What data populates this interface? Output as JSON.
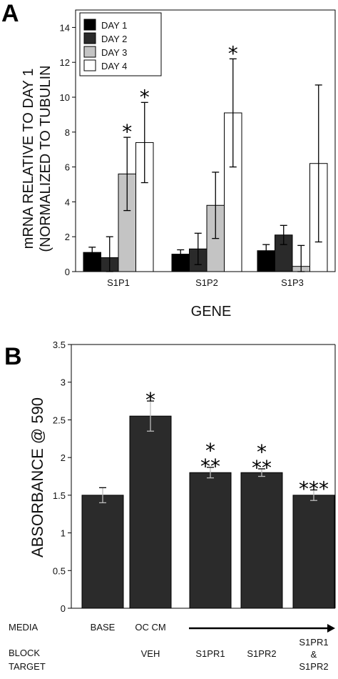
{
  "chart_data": [
    {
      "panel": "A",
      "type": "bar",
      "ylabel_line1": "mRNA RELATIVE TO DAY 1",
      "ylabel_line2": "(NORMALIZED TO TUBULIN",
      "xlabel": "GENE",
      "ylim": [
        0,
        15
      ],
      "yticks": [
        0,
        2,
        4,
        6,
        8,
        10,
        12,
        14
      ],
      "categories": [
        "S1P1",
        "S1P2",
        "S1P3"
      ],
      "legend_position": "top-left",
      "series": [
        {
          "name": "DAY 1",
          "color": "#000000",
          "values": [
            1.1,
            1.0,
            1.2
          ],
          "errors": [
            0.3,
            0.25,
            0.35
          ]
        },
        {
          "name": "DAY 2",
          "color": "#2a2a2a",
          "values": [
            0.8,
            1.3,
            2.1
          ],
          "errors": [
            1.2,
            0.9,
            0.55
          ]
        },
        {
          "name": "DAY 3",
          "color": "#c4c4c4",
          "values": [
            5.6,
            3.8,
            0.3
          ],
          "errors": [
            2.1,
            1.9,
            1.2
          ]
        },
        {
          "name": "DAY 4",
          "color": "#ffffff",
          "values": [
            7.4,
            9.1,
            6.2
          ],
          "errors": [
            2.3,
            3.1,
            4.5
          ]
        }
      ],
      "annotations": [
        {
          "category": "S1P1",
          "series": "DAY 3",
          "text": "*"
        },
        {
          "category": "S1P1",
          "series": "DAY 4",
          "text": "*"
        },
        {
          "category": "S1P2",
          "series": "DAY 4",
          "text": "*"
        }
      ]
    },
    {
      "panel": "B",
      "type": "bar",
      "ylabel": "ABSORBANCE @ 590",
      "ylim": [
        0,
        3.5
      ],
      "yticks": [
        "0",
        "0.5",
        "1",
        "1.5",
        "2",
        "2.5",
        "3",
        "3.5"
      ],
      "categories": [
        "BASE",
        "OC CM VEH",
        "S1PR1",
        "S1PR2",
        "S1PR1 & S1PR2"
      ],
      "values": [
        1.5,
        2.55,
        1.8,
        1.8,
        1.5
      ],
      "errors": [
        0.1,
        0.2,
        0.07,
        0.05,
        0.07
      ],
      "bar_color": "#2b2b2b",
      "annotations": [
        {
          "bar": 1,
          "lines": [
            "*"
          ]
        },
        {
          "bar": 2,
          "lines": [
            "*",
            "**"
          ]
        },
        {
          "bar": 3,
          "lines": [
            "*",
            "**"
          ]
        },
        {
          "bar": 4,
          "lines": [
            "***"
          ]
        }
      ]
    }
  ],
  "rows": {
    "media_label": "MEDIA",
    "block_label_1": "BLOCK",
    "block_label_2": "TARGET",
    "media_base": "BASE",
    "media_oc": "OC CM",
    "block_veh": "VEH",
    "block_s1pr1": "S1PR1",
    "block_s1pr2": "S1PR2",
    "block_both_1": "S1PR1",
    "block_both_2": "&",
    "block_both_3": "S1PR2"
  }
}
